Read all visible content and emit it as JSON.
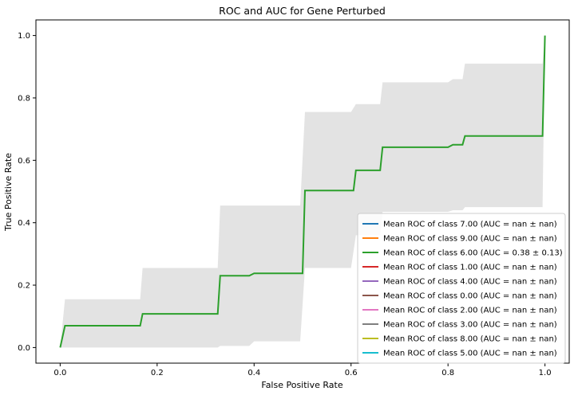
{
  "chart_data": {
    "type": "line",
    "title": "ROC and AUC for Gene Perturbed",
    "xlabel": "False Positive Rate",
    "ylabel": "True Positive Rate",
    "xlim": [
      -0.05,
      1.05
    ],
    "ylim": [
      -0.05,
      1.05
    ],
    "xticks": [
      0.0,
      0.2,
      0.4,
      0.6,
      0.8,
      1.0
    ],
    "xtick_labels": [
      "0.0",
      "0.2",
      "0.4",
      "0.6",
      "0.8",
      "1.0"
    ],
    "yticks": [
      0.0,
      0.2,
      0.4,
      0.6,
      0.8,
      1.0
    ],
    "ytick_labels": [
      "0.0",
      "0.2",
      "0.4",
      "0.6",
      "0.8",
      "1.0"
    ],
    "grid": false,
    "legend_position": "lower-right",
    "std_band": {
      "color": "#d9d9d9",
      "x": [
        0.0,
        0.01,
        0.165,
        0.17,
        0.325,
        0.33,
        0.39,
        0.4,
        0.495,
        0.505,
        0.6,
        0.61,
        0.66,
        0.665,
        0.8,
        0.81,
        0.83,
        0.835,
        0.995,
        1.0
      ],
      "upper": [
        0.0,
        0.155,
        0.155,
        0.255,
        0.255,
        0.455,
        0.455,
        0.455,
        0.455,
        0.755,
        0.755,
        0.78,
        0.78,
        0.85,
        0.85,
        0.86,
        0.86,
        0.91,
        0.91,
        1.0
      ],
      "lower": [
        0.0,
        0.0,
        0.0,
        0.0,
        0.0,
        0.005,
        0.005,
        0.02,
        0.02,
        0.255,
        0.255,
        0.36,
        0.36,
        0.435,
        0.435,
        0.44,
        0.44,
        0.45,
        0.45,
        1.0
      ]
    },
    "mean_curve": {
      "color": "#2ca02c",
      "x": [
        0.0,
        0.01,
        0.165,
        0.17,
        0.325,
        0.33,
        0.39,
        0.4,
        0.5,
        0.505,
        0.605,
        0.61,
        0.66,
        0.665,
        0.8,
        0.81,
        0.83,
        0.835,
        0.995,
        1.0
      ],
      "y": [
        0.0,
        0.07,
        0.07,
        0.108,
        0.108,
        0.23,
        0.23,
        0.238,
        0.238,
        0.503,
        0.503,
        0.568,
        0.568,
        0.642,
        0.642,
        0.65,
        0.65,
        0.678,
        0.678,
        1.0
      ]
    },
    "series": [
      {
        "name": "Mean ROC of class 7.00 (AUC = nan ± nan)",
        "color": "#1f77b4"
      },
      {
        "name": "Mean ROC of class 9.00 (AUC = nan ± nan)",
        "color": "#ff7f0e"
      },
      {
        "name": "Mean ROC of class 6.00 (AUC = 0.38 ± 0.13)",
        "color": "#2ca02c"
      },
      {
        "name": "Mean ROC of class 1.00 (AUC = nan ± nan)",
        "color": "#d62728"
      },
      {
        "name": "Mean ROC of class 4.00 (AUC = nan ± nan)",
        "color": "#9467bd"
      },
      {
        "name": "Mean ROC of class 0.00 (AUC = nan ± nan)",
        "color": "#8c564b"
      },
      {
        "name": "Mean ROC of class 2.00 (AUC = nan ± nan)",
        "color": "#e377c2"
      },
      {
        "name": "Mean ROC of class 3.00 (AUC = nan ± nan)",
        "color": "#7f7f7f"
      },
      {
        "name": "Mean ROC of class 8.00 (AUC = nan ± nan)",
        "color": "#bcbd22"
      },
      {
        "name": "Mean ROC of class 5.00 (AUC = nan ± nan)",
        "color": "#17becf"
      }
    ]
  }
}
